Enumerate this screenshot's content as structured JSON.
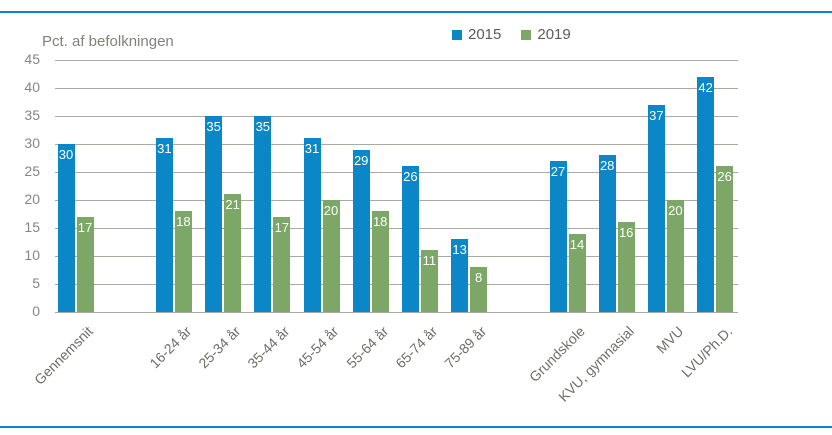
{
  "chart_data": {
    "type": "bar",
    "title": "Pct. af befolkningen",
    "categories": [
      "Gennemsnit",
      "16-24 år",
      "25-34 år",
      "35-44 år",
      "45-54 år",
      "55-64 år",
      "65-74 år",
      "75-89 år",
      "Grundskole",
      "KVU, gymnasial",
      "MVU",
      "LVU/Ph.D."
    ],
    "series": [
      {
        "name": "2015",
        "color": "#0b87c7",
        "values": [
          30,
          31,
          35,
          35,
          31,
          29,
          26,
          13,
          27,
          28,
          37,
          42
        ]
      },
      {
        "name": "2019",
        "color": "#7ca767",
        "values": [
          17,
          18,
          21,
          17,
          20,
          18,
          11,
          8,
          14,
          16,
          20,
          26
        ]
      }
    ],
    "group_breaks_before_indices": [
      1,
      8
    ],
    "ylim": [
      0,
      45
    ],
    "ytick_step": 5,
    "grid": true,
    "legend_position": "top-center",
    "value_labels": "inside-top-white",
    "accent_rule_color": "#0e86c6",
    "gridline_color": "#abab9f",
    "axis_text_color": "#87867e",
    "category_text_color": "#6f6e66",
    "value_label_color": "#ffffff"
  }
}
